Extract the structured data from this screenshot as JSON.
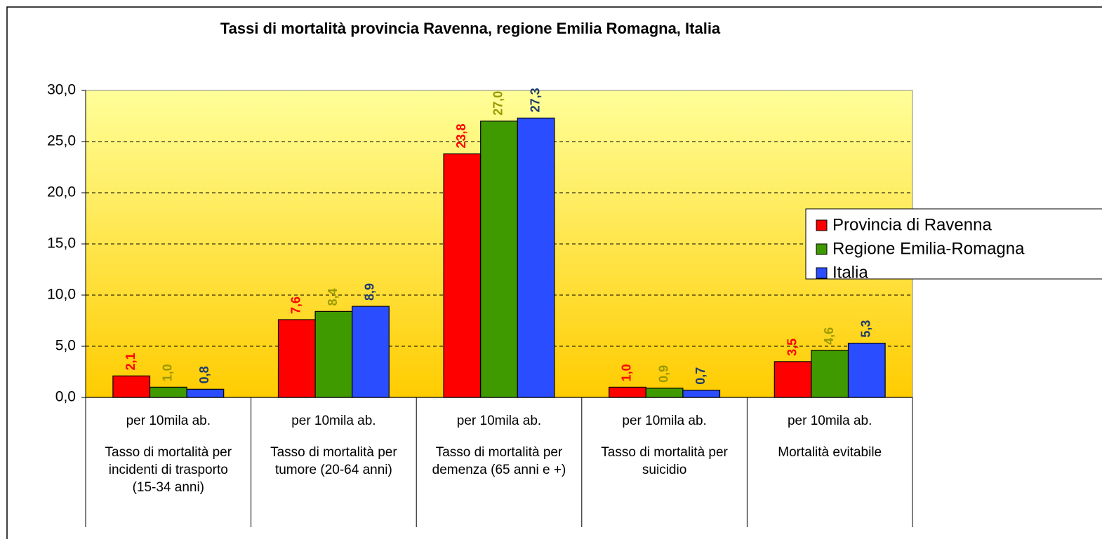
{
  "chart_data": {
    "type": "bar",
    "title": "Tassi di mortalità provincia Ravenna,  regione Emilia Romagna, Italia",
    "categories": [
      "Tasso di mortalità per incidenti di trasporto (15-34 anni)",
      "Tasso di mortalità per tumore (20-64 anni)",
      "Tasso di mortalità per demenza (65 anni e +)",
      "Tasso di mortalità per suicidio",
      "Mortalità evitabile"
    ],
    "category_units": [
      "per 10mila ab.",
      "per 10mila ab.",
      "per 10mila ab.",
      "per 10mila ab.",
      "per 10mila ab."
    ],
    "series": [
      {
        "name": "Provincia di Ravenna",
        "color": "#ff0000",
        "label_color": "#ff0000",
        "values": [
          2.1,
          7.6,
          23.8,
          1.0,
          3.5
        ],
        "value_labels": [
          "2,1",
          "7,6",
          "23,8",
          "1,0",
          "3,5"
        ]
      },
      {
        "name": "Regione Emilia-Romagna",
        "color": "#3f9a00",
        "label_color": "#999900",
        "values": [
          1.0,
          8.4,
          27.0,
          0.9,
          4.6
        ],
        "value_labels": [
          "1,0",
          "8,4",
          "27,0",
          "0,9",
          "4,6"
        ]
      },
      {
        "name": "Italia",
        "color": "#2a4dff",
        "label_color": "#1f3c6e",
        "values": [
          0.8,
          8.9,
          27.3,
          0.7,
          5.3
        ],
        "value_labels": [
          "0,8",
          "8,9",
          "27,3",
          "0,7",
          "5,3"
        ]
      }
    ],
    "ylim": [
      0,
      30
    ],
    "yticks": [
      {
        "value": 0,
        "label": "0,0"
      },
      {
        "value": 5,
        "label": "5,0"
      },
      {
        "value": 10,
        "label": "10,0"
      },
      {
        "value": 15,
        "label": "15,0"
      },
      {
        "value": 20,
        "label": "20,0"
      },
      {
        "value": 25,
        "label": "25,0"
      },
      {
        "value": 30,
        "label": "30,0"
      }
    ],
    "grid": true,
    "legend": "right"
  }
}
